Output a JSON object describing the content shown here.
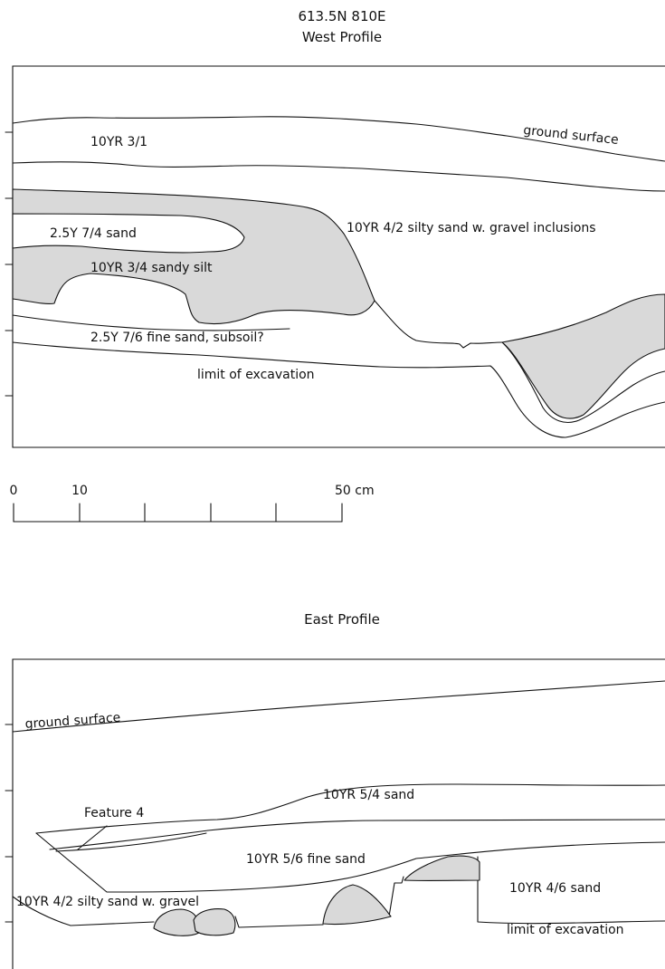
{
  "west": {
    "title_1": "613.5N 810E",
    "title_2": "West Profile",
    "labels": {
      "ground_surface": "ground surface",
      "layer_a": "10YR 3/1",
      "layer_b": "10YR 4/2 silty sand w. gravel inclusions",
      "layer_c": "2.5Y 7/4 sand",
      "layer_d": "10YR 3/4 sandy silt",
      "layer_e": "2.5Y 7/6 fine sand, subsoil?",
      "limit": "limit of excavation"
    }
  },
  "scale": {
    "tick_0": "0",
    "tick_10": "10",
    "tick_50": "50 cm"
  },
  "east": {
    "title": "East Profile",
    "labels": {
      "ground_surface": "ground surface",
      "feature": "Feature 4",
      "layer_a": "10YR 5/4 sand",
      "layer_b": "10YR 5/6 fine sand",
      "layer_c": "10YR 4/2 silty sand w. gravel",
      "layer_d": "10YR 4/6 sand",
      "limit": "limit of excavation"
    }
  },
  "colors": {
    "line": "#111111",
    "fill": "#d9d9d9"
  }
}
